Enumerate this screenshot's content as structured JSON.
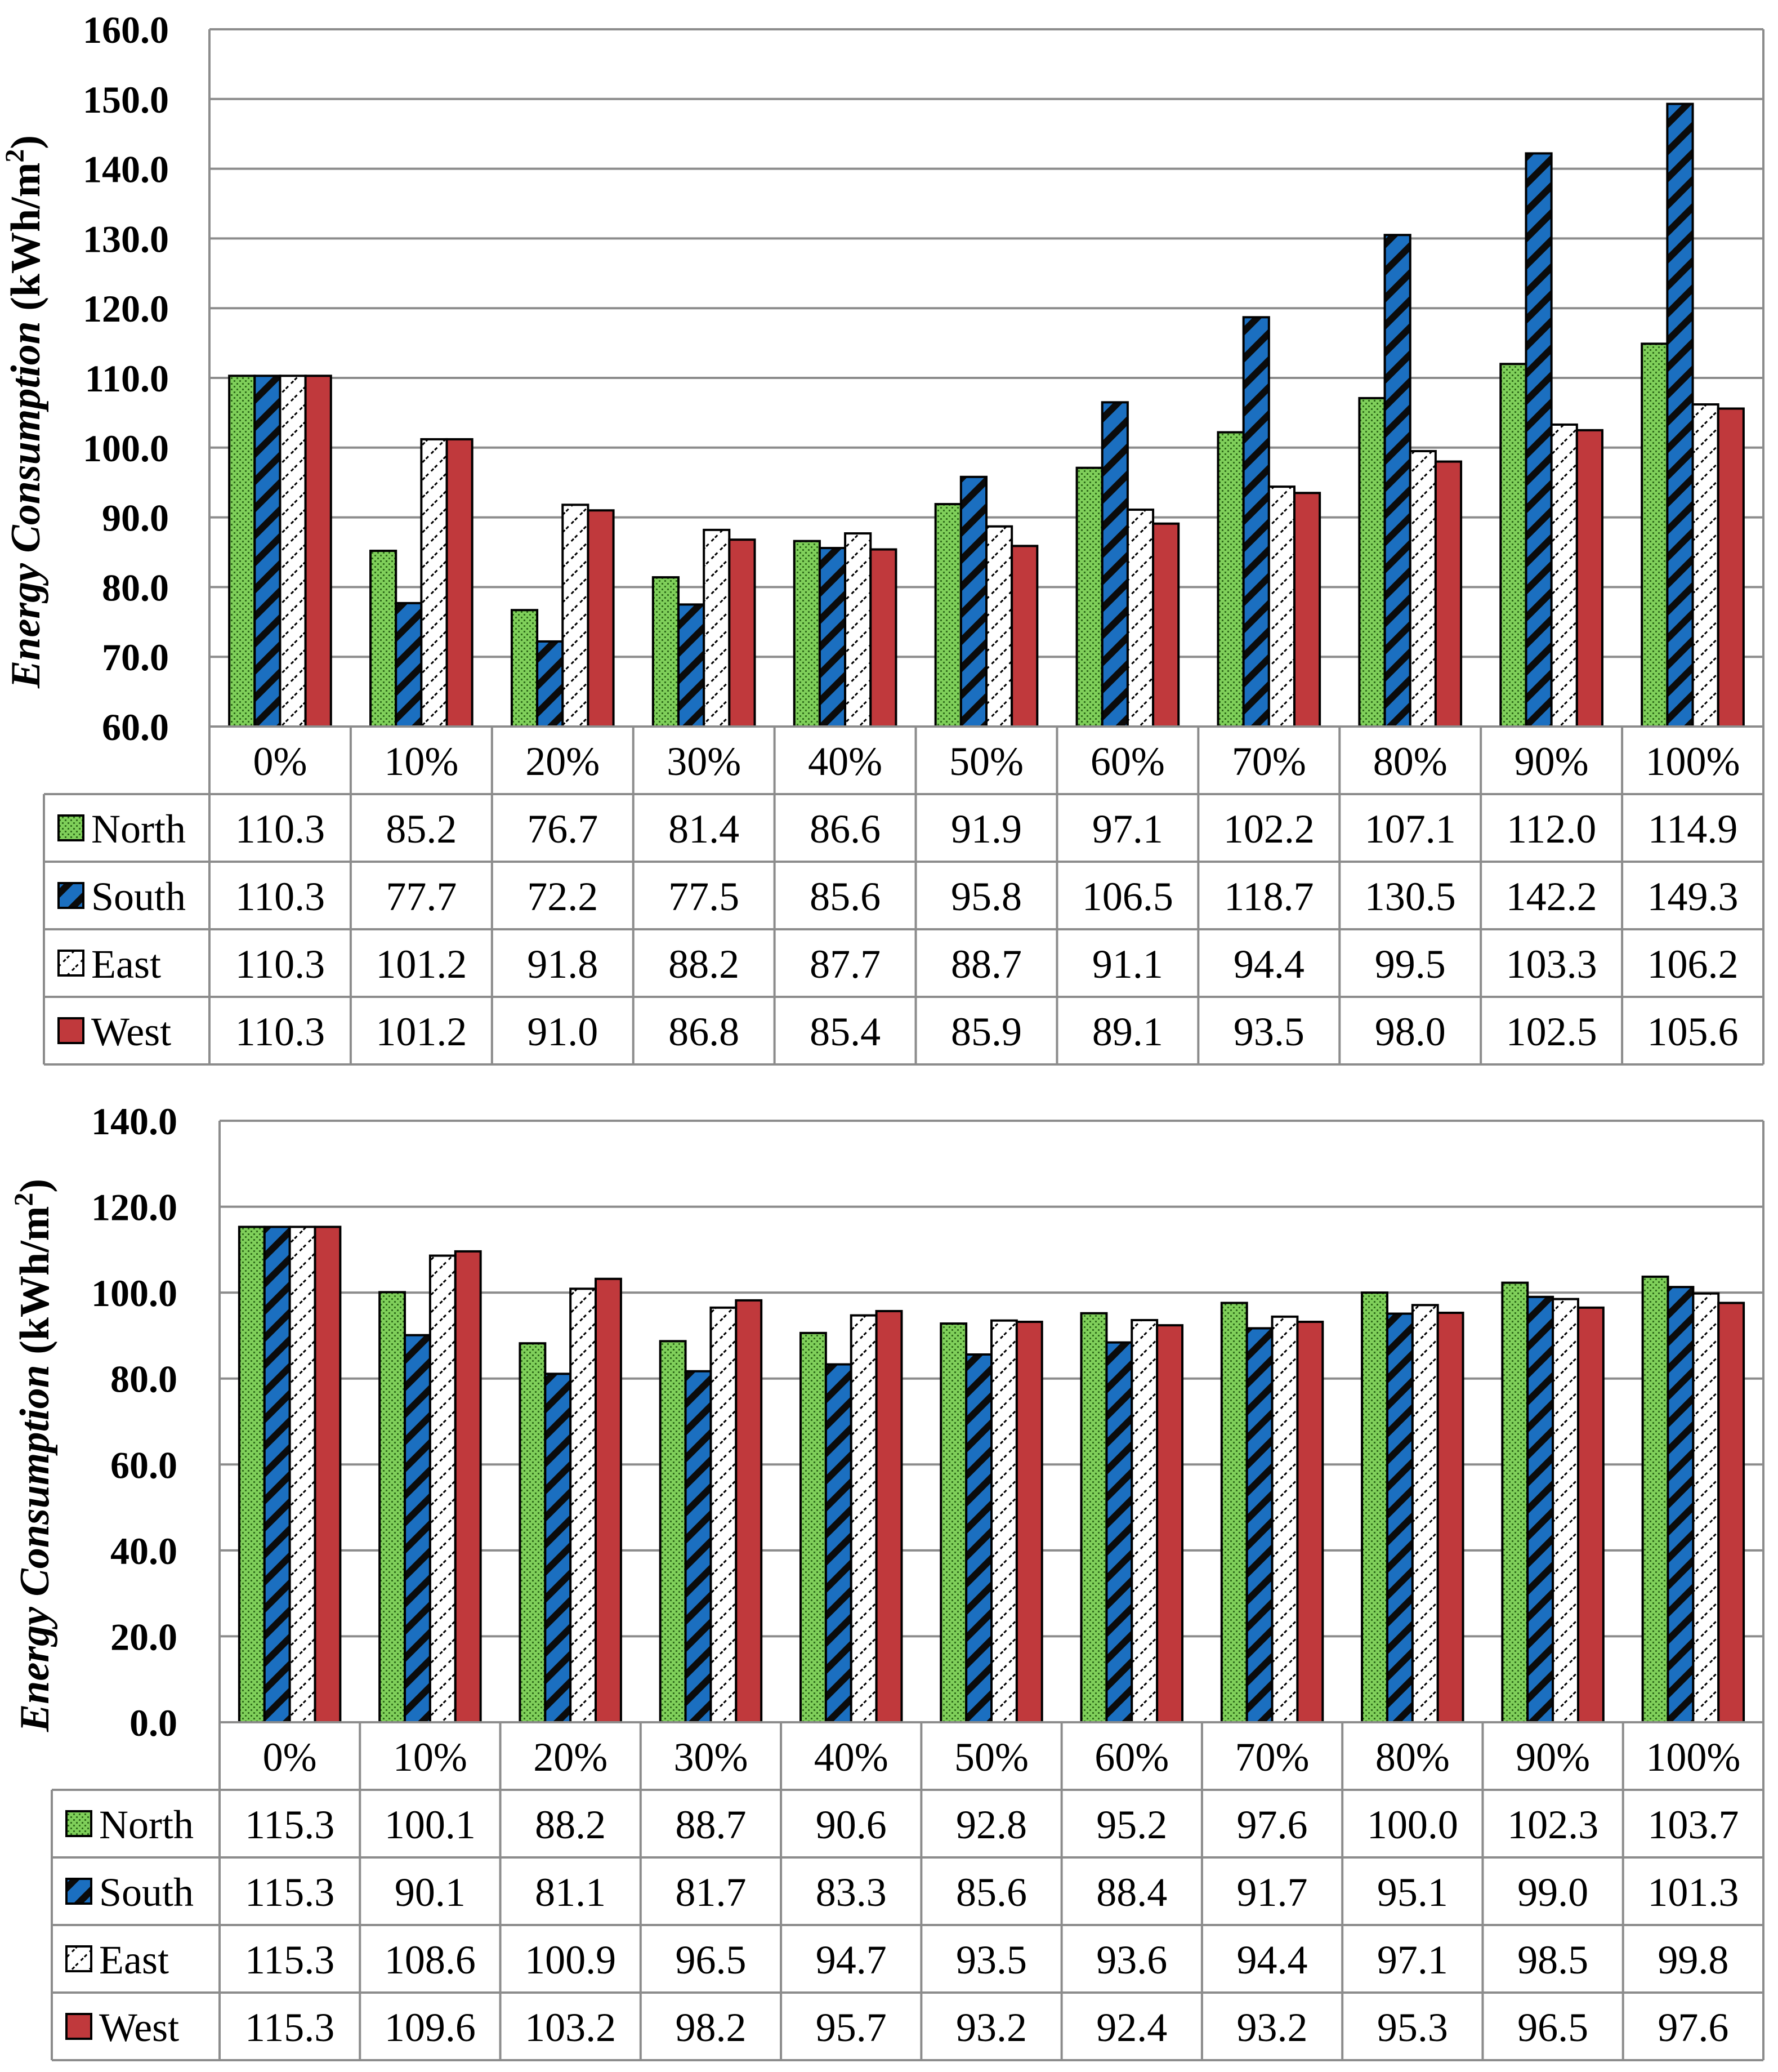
{
  "colors": {
    "north": "#7fcf5a",
    "south": "#1b6fc0",
    "east": "#ffffff",
    "west": "#c0393c",
    "grid": "#8c8c8c"
  },
  "chart_data": [
    {
      "type": "bar",
      "ylabel_italic": "Energy Consumption",
      "ylabel_unit": "(kWh/m",
      "ylabel_sup": "2",
      "ylabel_close": ")",
      "ylim": [
        60,
        160
      ],
      "yticks": [
        "60.0",
        "70.0",
        "80.0",
        "90.0",
        "100.0",
        "110.0",
        "120.0",
        "130.0",
        "140.0",
        "150.0",
        "160.0"
      ],
      "categories": [
        "0%",
        "10%",
        "20%",
        "30%",
        "40%",
        "50%",
        "60%",
        "70%",
        "80%",
        "90%",
        "100%"
      ],
      "series": [
        {
          "name": "North",
          "values": [
            "110.3",
            "85.2",
            "76.7",
            "81.4",
            "86.6",
            "91.9",
            "97.1",
            "102.2",
            "107.1",
            "112.0",
            "114.9"
          ]
        },
        {
          "name": "South",
          "values": [
            "110.3",
            "77.7",
            "72.2",
            "77.5",
            "85.6",
            "95.8",
            "106.5",
            "118.7",
            "130.5",
            "142.2",
            "149.3"
          ]
        },
        {
          "name": "East",
          "values": [
            "110.3",
            "101.2",
            "91.8",
            "88.2",
            "87.7",
            "88.7",
            "91.1",
            "94.4",
            "99.5",
            "103.3",
            "106.2"
          ]
        },
        {
          "name": "West",
          "values": [
            "110.3",
            "101.2",
            "91.0",
            "86.8",
            "85.4",
            "85.9",
            "89.1",
            "93.5",
            "98.0",
            "102.5",
            "105.6"
          ]
        }
      ]
    },
    {
      "type": "bar",
      "ylabel_italic": "Energy Consumption",
      "ylabel_unit": "(kWh/m",
      "ylabel_sup": "2",
      "ylabel_close": ")",
      "ylim": [
        0,
        140
      ],
      "yticks": [
        "0.0",
        "20.0",
        "40.0",
        "60.0",
        "80.0",
        "100.0",
        "120.0",
        "140.0"
      ],
      "categories": [
        "0%",
        "10%",
        "20%",
        "30%",
        "40%",
        "50%",
        "60%",
        "70%",
        "80%",
        "90%",
        "100%"
      ],
      "series": [
        {
          "name": "North",
          "values": [
            "115.3",
            "100.1",
            "88.2",
            "88.7",
            "90.6",
            "92.8",
            "95.2",
            "97.6",
            "100.0",
            "102.3",
            "103.7"
          ]
        },
        {
          "name": "South",
          "values": [
            "115.3",
            "90.1",
            "81.1",
            "81.7",
            "83.3",
            "85.6",
            "88.4",
            "91.7",
            "95.1",
            "99.0",
            "101.3"
          ]
        },
        {
          "name": "East",
          "values": [
            "115.3",
            "108.6",
            "100.9",
            "96.5",
            "94.7",
            "93.5",
            "93.6",
            "94.4",
            "97.1",
            "98.5",
            "99.8"
          ]
        },
        {
          "name": "West",
          "values": [
            "115.3",
            "109.6",
            "103.2",
            "98.2",
            "95.7",
            "93.2",
            "92.4",
            "93.2",
            "95.3",
            "96.5",
            "97.6"
          ]
        }
      ]
    }
  ]
}
